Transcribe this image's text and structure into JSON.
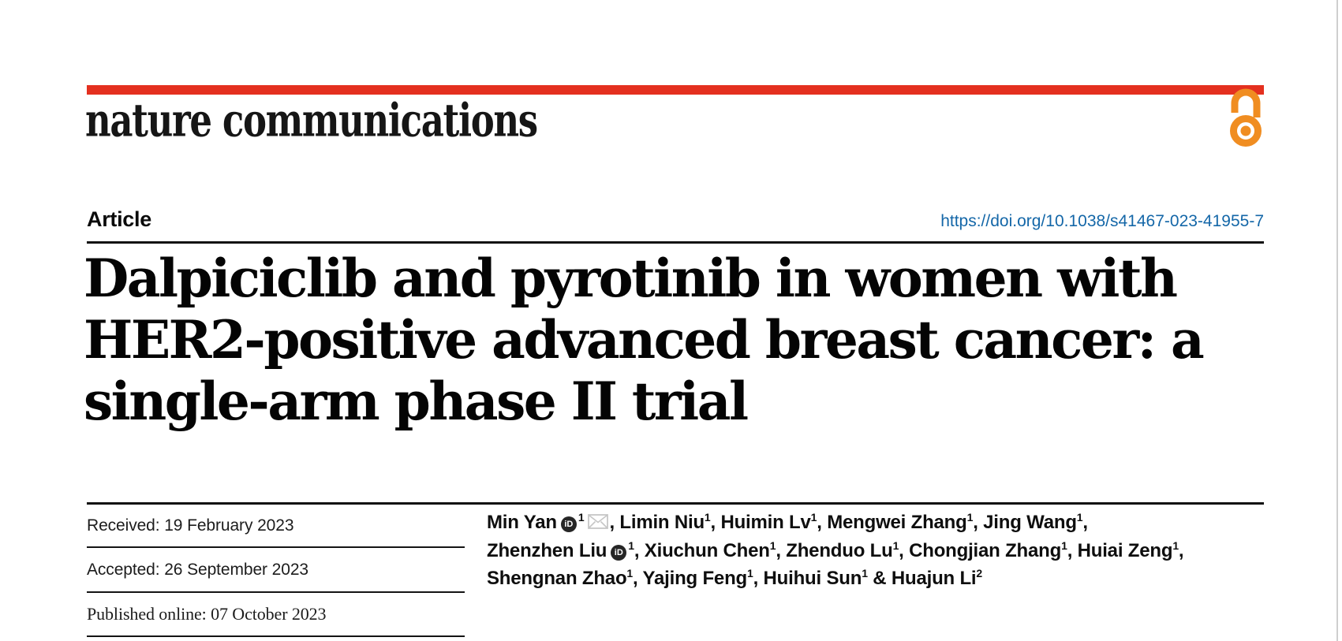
{
  "masthead": {
    "logo": "nature communications",
    "brand_bar_color": "#e4301f",
    "open_access_color": "#f08d21"
  },
  "article": {
    "kicker": "Article",
    "doi": "https://doi.org/10.1038/s41467-023-41955-7",
    "doi_color": "#1467a8",
    "title_line1": "Dalpiciclib and pyrotinib in women with",
    "title_line2": "HER2-positive advanced breast cancer: a",
    "title_line3": "single-arm phase II trial"
  },
  "dates": {
    "received": "Received: 19 February 2023",
    "accepted": "Accepted: 26 September 2023",
    "published": "Published online: 07 October 2023"
  },
  "icons": {
    "orcid_text": "iD"
  },
  "authors": {
    "lines": [
      [
        {
          "name": "Min Yan",
          "orcid": true,
          "sup": "1",
          "envelope": true,
          "suffix": ", "
        },
        {
          "name": "Limin Niu",
          "sup": "1",
          "suffix": ", "
        },
        {
          "name": "Huimin Lv",
          "sup": "1",
          "suffix": ", "
        },
        {
          "name": "Mengwei Zhang",
          "sup": "1",
          "suffix": ", "
        },
        {
          "name": "Jing Wang",
          "sup": "1",
          "suffix": ","
        }
      ],
      [
        {
          "name": "Zhenzhen Liu",
          "orcid": true,
          "sup": "1",
          "suffix": ", "
        },
        {
          "name": "Xiuchun Chen",
          "sup": "1",
          "suffix": ", "
        },
        {
          "name": "Zhenduo Lu",
          "sup": "1",
          "suffix": ", "
        },
        {
          "name": "Chongjian Zhang",
          "sup": "1",
          "suffix": ", "
        },
        {
          "name": "Huiai Zeng",
          "sup": "1",
          "suffix": ","
        }
      ],
      [
        {
          "name": "Shengnan Zhao",
          "sup": "1",
          "suffix": ", "
        },
        {
          "name": "Yajing Feng",
          "sup": "1",
          "suffix": ", "
        },
        {
          "name": "Huihui Sun",
          "sup": "1",
          "suffix": ""
        },
        {
          "name": "Huajun Li",
          "sup": "2",
          "prefix": " & ",
          "suffix": ""
        }
      ]
    ]
  }
}
